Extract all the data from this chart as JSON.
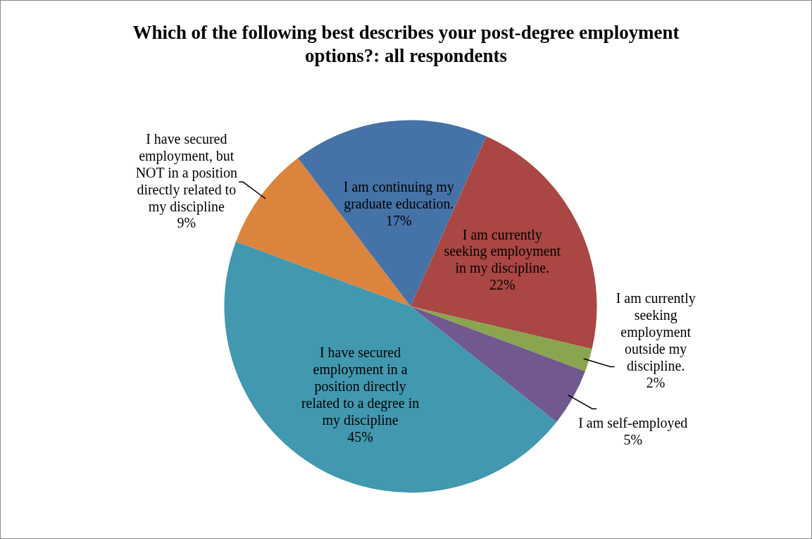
{
  "chart_data": {
    "type": "pie",
    "title": "Which of the following best describes your post-degree employment options?: all respondents",
    "categories": [
      "I am currently seeking employment in my discipline.",
      "I am currently seeking employment outside my discipline.",
      "I am self-employed",
      "I have secured employment in a position directly related to a degree in my discipline",
      "I have secured employment, but NOT in a position directly related to my discipline",
      "I am continuing my graduate education."
    ],
    "values": [
      22,
      2,
      5,
      45,
      9,
      17
    ],
    "value_labels": [
      "22%",
      "2%",
      "5%",
      "45%",
      "9%",
      "17%"
    ],
    "colors": [
      "#aa4643",
      "#89a54e",
      "#71588f",
      "#4198af",
      "#db843d",
      "#4572a7"
    ],
    "legend": false
  }
}
